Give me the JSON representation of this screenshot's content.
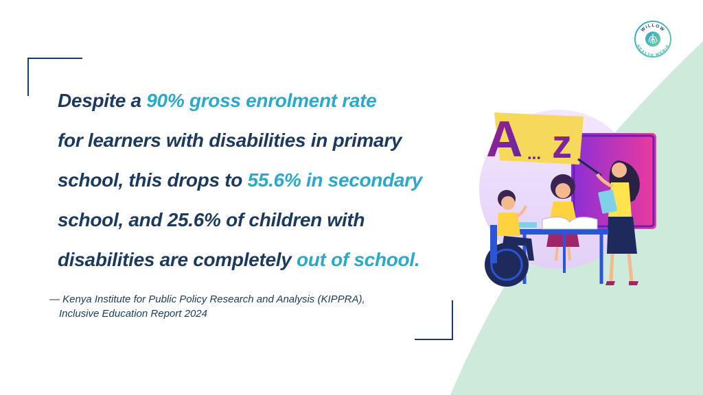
{
  "quote": {
    "line1": [
      "Despite a ",
      "90% gross enrolment rate"
    ],
    "line2": "for learners with disabilities in primary",
    "line3": [
      "school, this drops to ",
      "55.6% in secondary"
    ],
    "line4": "school, and 25.6% of children with",
    "line5": [
      "disabilities are completely ",
      "out of school."
    ]
  },
  "citation": {
    "line1": "— Kenya Institute for Public Policy Research and Analysis (KIPPRA),",
    "line2": "Inclusive Education Report 2024"
  },
  "logo": {
    "top_text": "WILLOW",
    "bottom_text": "HEALTH MEDIA"
  },
  "illustration": {
    "board_text_a": "A",
    "board_text_dots": "...",
    "board_text_z": "z"
  },
  "colors": {
    "navy": "#1c3a5e",
    "teal_highlight": "#2aa9c9",
    "mint_wave": "#cdeadb"
  }
}
